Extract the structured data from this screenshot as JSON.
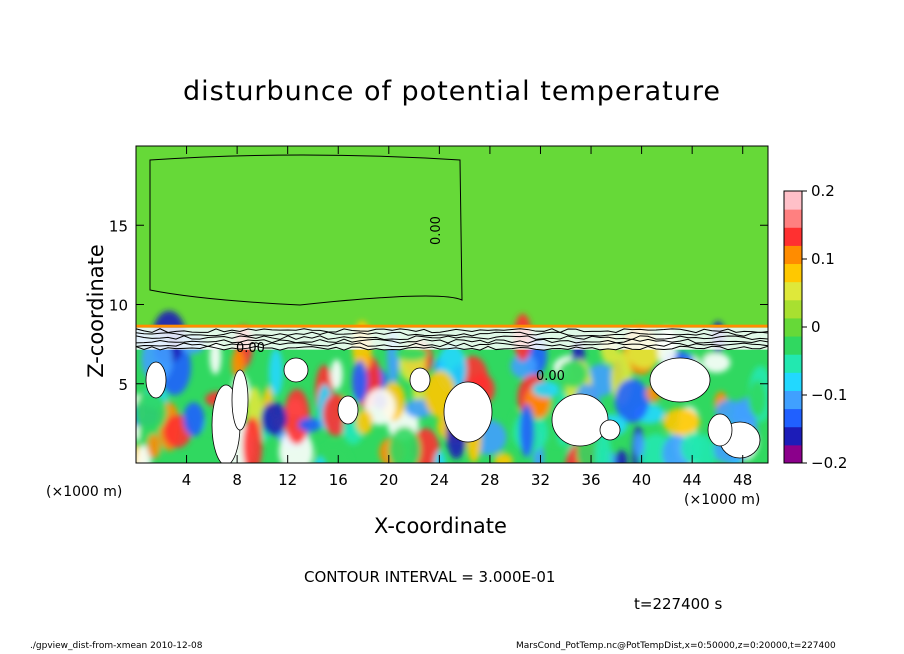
{
  "chart_data": {
    "type": "heatmap",
    "title": "disturbunce of potential temperature",
    "xlabel": "X-coordinate",
    "ylabel": "Z-coordinate",
    "x_unit_left": "(×1000 m)",
    "x_unit_right": "(×1000 m)",
    "xlim": [
      0,
      50
    ],
    "ylim": [
      0,
      20
    ],
    "x_ticks": [
      4,
      8,
      12,
      16,
      20,
      24,
      28,
      32,
      36,
      40,
      44,
      48
    ],
    "y_ticks": [
      5,
      10,
      15
    ],
    "contour_labels": [
      "0.00",
      "0.00",
      "0.00"
    ],
    "colorbar": {
      "range": [
        -0.2,
        0.2
      ],
      "tick_labels": [
        "0.2",
        "0.1",
        "0",
        "−0.1",
        "−0.2"
      ],
      "tick_values": [
        0.2,
        0.1,
        0,
        -0.1,
        -0.2
      ],
      "colors": [
        "#8b008b",
        "#1c1cb8",
        "#2060ff",
        "#40a0ff",
        "#22d8ff",
        "#22e8b0",
        "#30d860",
        "#66d938",
        "#a8e030",
        "#dfe83a",
        "#ffc800",
        "#ff8c00",
        "#ff3030",
        "#ff8080",
        "#ffc0c8"
      ]
    },
    "upper_layer_value": 0,
    "inversion_height": 8.6
  },
  "annotations": {
    "contour_interval": "CONTOUR INTERVAL = 3.000E-01",
    "time": "t=227400 s"
  },
  "footer": {
    "left": "./gpview_dist-from-xmean   2010-12-08",
    "right": "MarsCond_PotTemp.nc@PotTempDist,x=0:50000,z=0:20000,t=227400"
  }
}
